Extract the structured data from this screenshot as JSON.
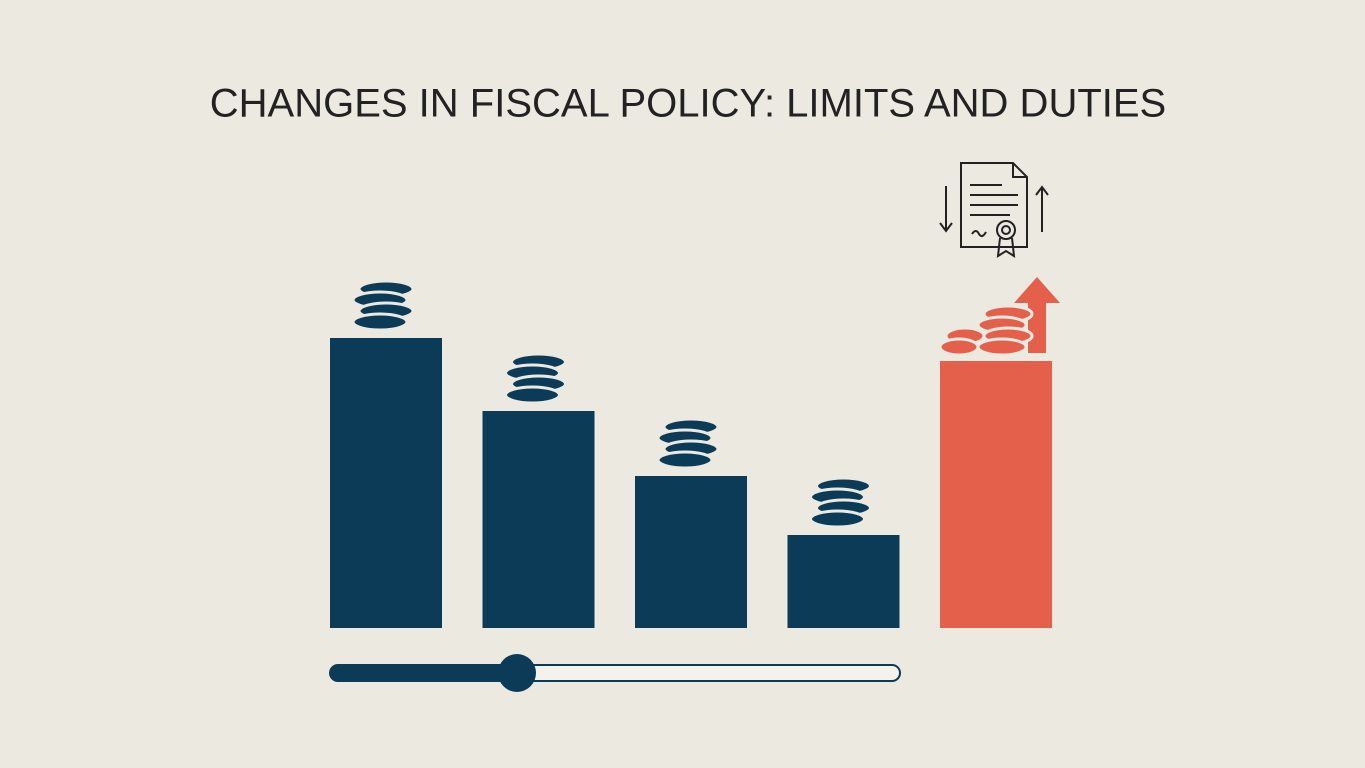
{
  "chart_data": {
    "type": "bar",
    "title": "CHANGES IN FISCAL POLICY: LIMITS AND DUTIES",
    "categories": [
      null,
      null,
      null,
      null,
      null
    ],
    "values": [
      290,
      217,
      152,
      93,
      267
    ],
    "colors": [
      "#0b3b57",
      "#0b3b57",
      "#0b3b57",
      "#0b3b57",
      "#e4604a"
    ]
  }
}
